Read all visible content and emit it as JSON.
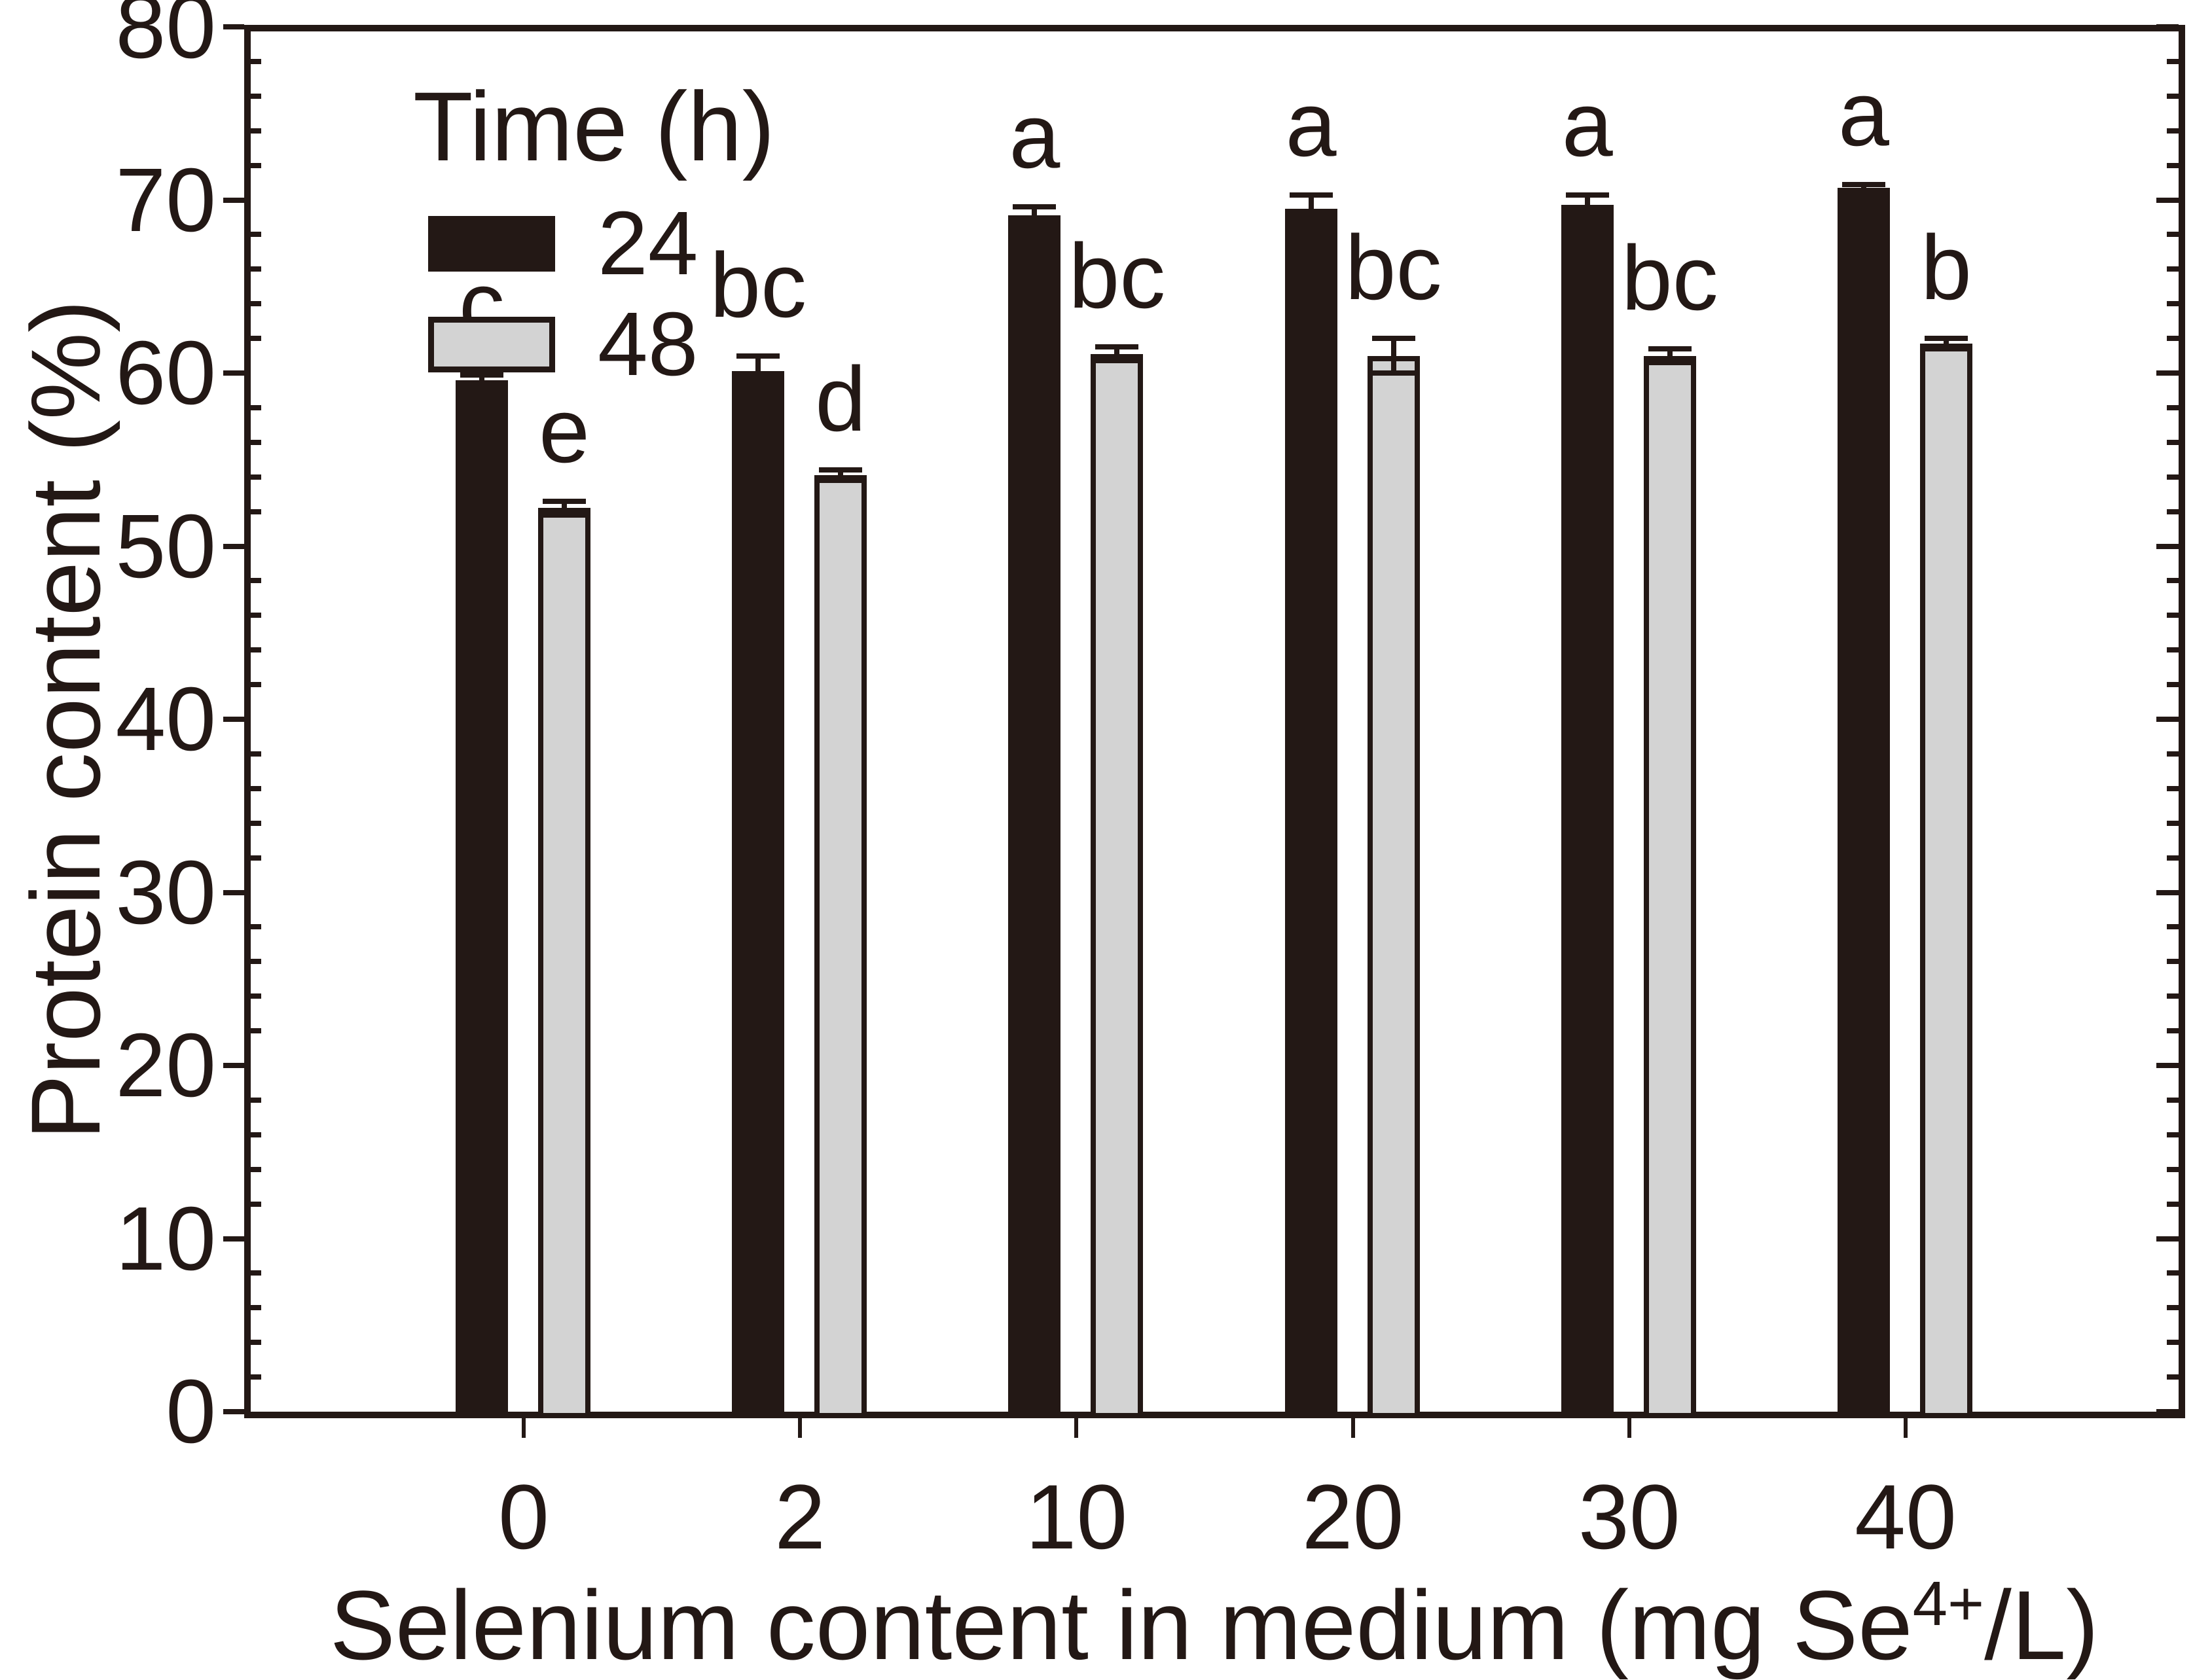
{
  "figure": {
    "y_axis_title": "Protein content (%)",
    "x_axis_title_prefix": "Selenium content in medium (mg Se",
    "x_axis_title_sup": "4+",
    "x_axis_title_suffix": "/L)"
  },
  "legend": {
    "title": "Time (h)",
    "entries": [
      {
        "label": "24",
        "color": "#231815"
      },
      {
        "label": "48",
        "color": "#d3d3d3"
      }
    ]
  },
  "chart_data": {
    "type": "bar",
    "title": "",
    "xlabel": "Selenium content in medium (mg Se4+/L)",
    "ylabel": "Protein content (%)",
    "categories": [
      "0",
      "2",
      "10",
      "20",
      "30",
      "40"
    ],
    "series": [
      {
        "name": "24",
        "fill": "#231815",
        "outline": "#231815",
        "values": [
          59.6,
          60.1,
          69.1,
          69.5,
          69.7,
          70.7
        ],
        "errors": [
          0.3,
          0.9,
          0.5,
          0.8,
          0.6,
          0.2
        ],
        "letters": [
          "c",
          "bc",
          "a",
          "a",
          "a",
          "a"
        ]
      },
      {
        "name": "48",
        "fill": "#d3d3d3",
        "outline": "#231815",
        "values": [
          52.2,
          54.1,
          61.1,
          61.0,
          61.0,
          61.7
        ],
        "errors": [
          0.4,
          0.3,
          0.4,
          1.0,
          0.4,
          0.3
        ],
        "letters": [
          "e",
          "d",
          "bc",
          "bc",
          "bc",
          "b"
        ]
      }
    ],
    "ylim": [
      0,
      80
    ],
    "ytick_major": 10,
    "ytick_minor": 2,
    "ytick_labels": [
      "0",
      "10",
      "20",
      "30",
      "40",
      "50",
      "60",
      "70",
      "80"
    ],
    "grid": false,
    "legend_position": "upper-left-inside",
    "error_bar_caps": true,
    "frame": "full-box"
  }
}
